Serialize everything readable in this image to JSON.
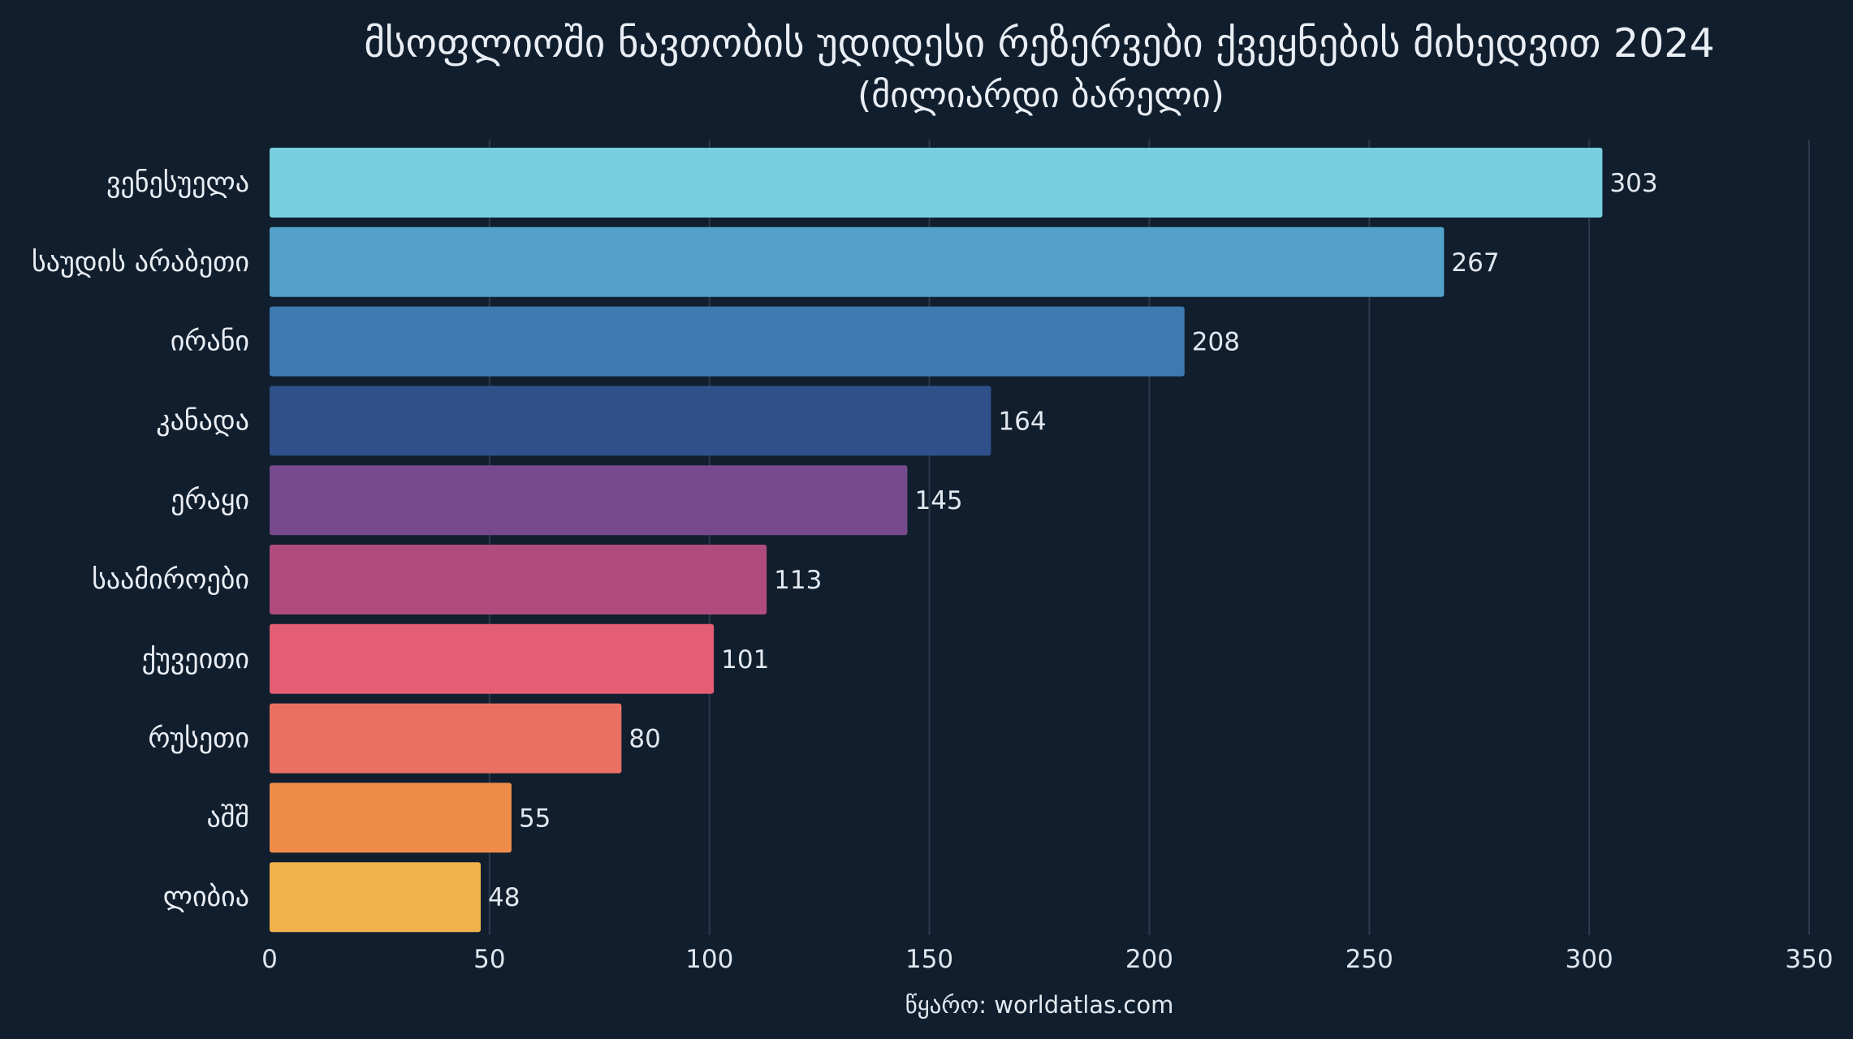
{
  "chart_data": {
    "type": "bar",
    "orientation": "horizontal",
    "title": "მსოფლიოში ნავთობის უდიდესი რეზერვები ქვეყნების მიხედვით 2024",
    "subtitle": "(მილიარდი ბარელი)",
    "categories": [
      "ვენესუელა",
      "საუდის არაბეთი",
      "ირანი",
      "კანადა",
      "ერაყი",
      "საამიროები",
      "ქუვეითი",
      "რუსეთი",
      "აშშ",
      "ლიბია"
    ],
    "values": [
      303,
      267,
      208,
      164,
      145,
      113,
      101,
      80,
      55,
      48
    ],
    "colors": [
      "#77cfe0",
      "#53a1cb",
      "#3e79b0",
      "#2f5089",
      "#764a8d",
      "#b04c7d",
      "#e35e74",
      "#ea7162",
      "#ef8c4a",
      "#f0b24c"
    ],
    "xlim": [
      0,
      350
    ],
    "xticks": [
      0,
      50,
      100,
      150,
      200,
      250,
      300,
      350
    ],
    "grid": true,
    "source": "წყარო: worldatlas.com"
  }
}
